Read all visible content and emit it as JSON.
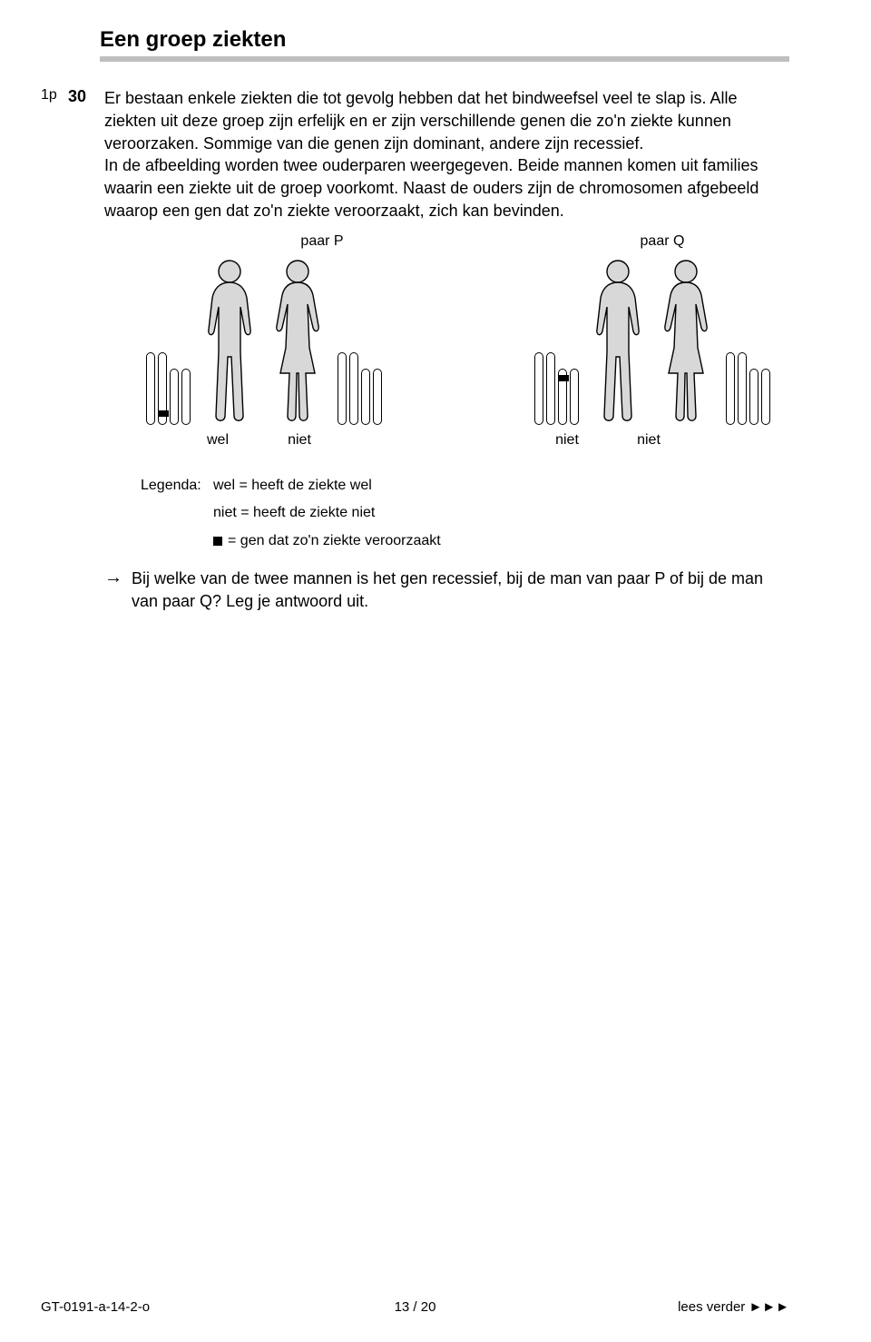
{
  "title": "Een groep ziekten",
  "points": "1p",
  "question_number": "30",
  "body_text": "Er bestaan enkele ziekten die tot gevolg hebben dat het bindweefsel veel te slap is. Alle ziekten uit deze groep zijn erfelijk en er zijn verschillende genen die zo'n ziekte kunnen veroorzaken. Sommige van die genen zijn dominant, andere zijn recessief.\nIn de afbeelding worden twee ouderparen weergegeven. Beide mannen komen uit families waarin een ziekte uit de groep voorkomt. Naast de ouders zijn de chromosomen afgebeeld waarop een gen dat zo'n ziekte veroorzaakt, zich kan bevinden.",
  "figure": {
    "pair_p_label": "paar P",
    "pair_q_label": "paar Q",
    "labels": {
      "wel": "wel",
      "niet": "niet"
    },
    "chromosome_heights": {
      "tall": 80,
      "short": 62
    },
    "body_fill": "#d8d8d8",
    "body_stroke": "#000000",
    "marker_p_position": "bottom",
    "marker_q_position": "top"
  },
  "legend": {
    "prefix": "Legenda:",
    "line1": "wel = heeft de ziekte wel",
    "line2": "niet = heeft de ziekte niet",
    "line3": "= gen dat zo'n ziekte veroorzaakt"
  },
  "question_text": "Bij welke van de twee mannen is het gen recessief, bij de man van paar P of bij de man van paar Q? Leg je antwoord uit.",
  "footer": {
    "left": "GT-0191-a-14-2-o",
    "center": "13 / 20",
    "right": "lees verder ►►►"
  },
  "colors": {
    "underline": "#bfbfbf",
    "text": "#000000",
    "background": "#ffffff"
  }
}
